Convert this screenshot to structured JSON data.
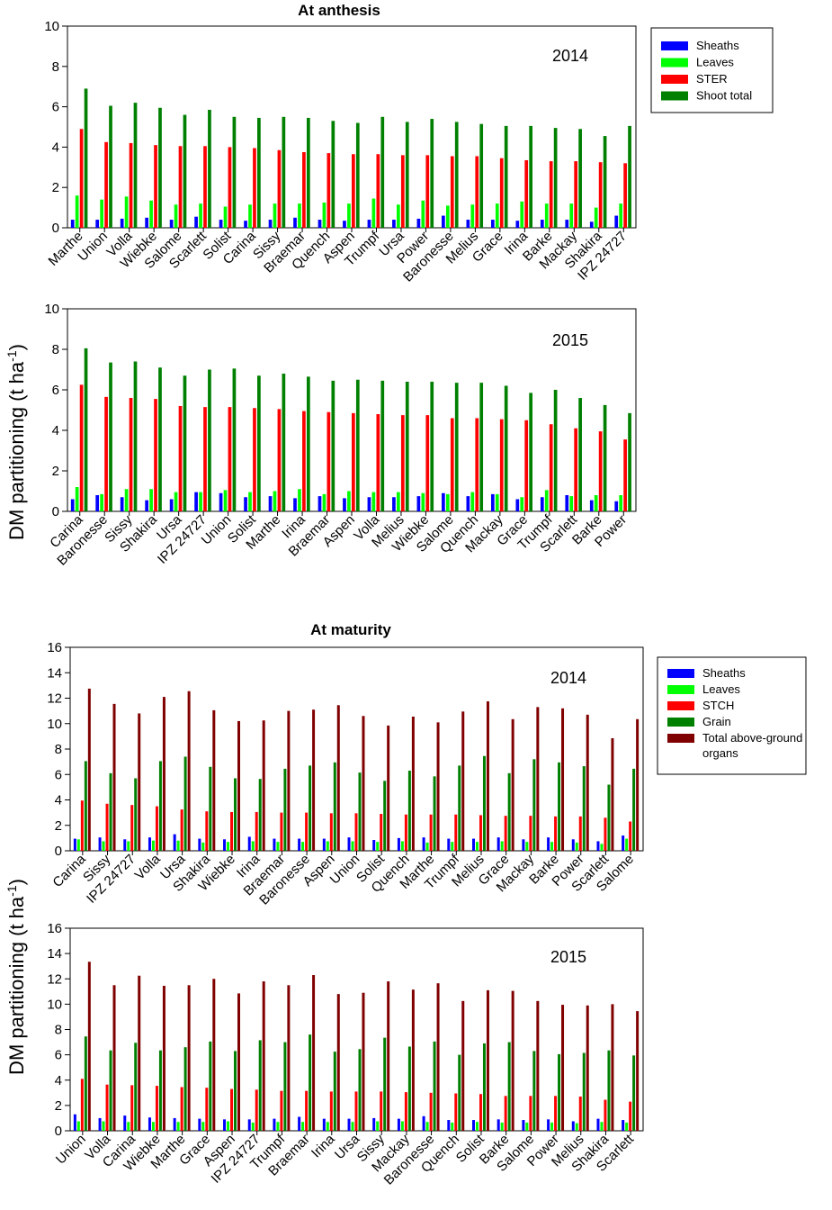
{
  "titles": {
    "anthesis": "At anthesis",
    "maturity": "At maturity"
  },
  "y_axis_label": "DM partitioning (t ha",
  "y_axis_label_sup": "-1",
  "y_axis_label_end": ")",
  "legend_anthesis": [
    {
      "name": "Sheaths",
      "color": "#0000ff"
    },
    {
      "name": "Leaves",
      "color": "#00ff00"
    },
    {
      "name": "STER",
      "color": "#ff0000"
    },
    {
      "name": "Shoot total",
      "color": "#008000"
    }
  ],
  "legend_maturity": [
    {
      "name": "Sheaths",
      "color": "#0000ff"
    },
    {
      "name": "Leaves",
      "color": "#00ff00"
    },
    {
      "name": "STCH",
      "color": "#ff0000"
    },
    {
      "name": "Grain",
      "color": "#008000"
    },
    {
      "name": "Total above-ground organs",
      "lines": [
        "Total above-ground",
        "organs"
      ],
      "color": "#800000"
    }
  ],
  "chart_data": [
    {
      "type": "bar",
      "title": "At anthesis",
      "label": "2014",
      "ylabel": "DM partitioning (t ha-1)",
      "ylim": [
        0,
        10
      ],
      "yticks": [
        0,
        2,
        4,
        6,
        8,
        10
      ],
      "categories": [
        "Marthe",
        "Union",
        "Volla",
        "Wiebke",
        "Salome",
        "Scarlett",
        "Solist",
        "Carina",
        "Sissy",
        "Braemar",
        "Quench",
        "Aspen",
        "Trumpf",
        "Ursa",
        "Power",
        "Baronesse",
        "Melius",
        "Grace",
        "Irina",
        "Barke",
        "Mackay",
        "Shakira",
        "IPZ 24727"
      ],
      "series": [
        {
          "name": "Sheaths",
          "values": [
            0.4,
            0.4,
            0.45,
            0.5,
            0.4,
            0.55,
            0.4,
            0.35,
            0.4,
            0.5,
            0.4,
            0.35,
            0.4,
            0.4,
            0.45,
            0.6,
            0.4,
            0.4,
            0.35,
            0.4,
            0.4,
            0.3,
            0.6
          ]
        },
        {
          "name": "Leaves",
          "values": [
            1.6,
            1.4,
            1.55,
            1.35,
            1.15,
            1.2,
            1.05,
            1.15,
            1.2,
            1.2,
            1.25,
            1.2,
            1.45,
            1.15,
            1.35,
            1.1,
            1.15,
            1.2,
            1.3,
            1.2,
            1.2,
            1.0,
            1.2
          ]
        },
        {
          "name": "STER",
          "values": [
            4.9,
            4.25,
            4.2,
            4.1,
            4.05,
            4.05,
            4.0,
            3.95,
            3.85,
            3.75,
            3.7,
            3.65,
            3.65,
            3.6,
            3.6,
            3.55,
            3.55,
            3.45,
            3.35,
            3.3,
            3.3,
            3.25,
            3.2
          ]
        },
        {
          "name": "Shoot total",
          "values": [
            6.9,
            6.05,
            6.2,
            5.95,
            5.6,
            5.85,
            5.5,
            5.45,
            5.5,
            5.45,
            5.3,
            5.2,
            5.5,
            5.25,
            5.4,
            5.25,
            5.15,
            5.05,
            5.05,
            4.95,
            4.9,
            4.55,
            5.05
          ]
        }
      ]
    },
    {
      "type": "bar",
      "title": "",
      "label": "2015",
      "ylabel": "DM partitioning (t ha-1)",
      "ylim": [
        0,
        10
      ],
      "yticks": [
        0,
        2,
        4,
        6,
        8,
        10
      ],
      "categories": [
        "Carina",
        "Baronesse",
        "Sissy",
        "Shakira",
        "Ursa",
        "IPZ 24727",
        "Union",
        "Solist",
        "Marthe",
        "Irina",
        "Braemar",
        "Aspen",
        "Volla",
        "Melius",
        "Wiebke",
        "Salome",
        "Quench",
        "Mackay",
        "Grace",
        "Trumpf",
        "Scarlett",
        "Barke",
        "Power"
      ],
      "series": [
        {
          "name": "Sheaths",
          "values": [
            0.6,
            0.8,
            0.7,
            0.55,
            0.6,
            0.95,
            0.9,
            0.7,
            0.75,
            0.65,
            0.75,
            0.65,
            0.7,
            0.7,
            0.75,
            0.9,
            0.75,
            0.85,
            0.6,
            0.7,
            0.8,
            0.55,
            0.5
          ]
        },
        {
          "name": "Leaves",
          "values": [
            1.2,
            0.85,
            1.1,
            1.1,
            0.95,
            0.95,
            1.05,
            0.95,
            1.0,
            1.1,
            0.85,
            1.0,
            0.95,
            0.95,
            0.9,
            0.85,
            0.95,
            0.85,
            0.7,
            1.05,
            0.75,
            0.8,
            0.8
          ]
        },
        {
          "name": "STER",
          "values": [
            6.25,
            5.65,
            5.6,
            5.55,
            5.2,
            5.15,
            5.15,
            5.1,
            5.05,
            4.95,
            4.9,
            4.85,
            4.8,
            4.75,
            4.75,
            4.6,
            4.6,
            4.55,
            4.5,
            4.3,
            4.1,
            3.95,
            3.55
          ]
        },
        {
          "name": "Shoot total",
          "values": [
            8.05,
            7.35,
            7.4,
            7.1,
            6.7,
            7.0,
            7.05,
            6.7,
            6.8,
            6.65,
            6.45,
            6.5,
            6.45,
            6.4,
            6.4,
            6.35,
            6.35,
            6.2,
            5.85,
            6.0,
            5.6,
            5.25,
            4.85
          ]
        }
      ]
    },
    {
      "type": "bar",
      "title": "At maturity",
      "label": "2014",
      "ylabel": "DM partitioning (t ha-1)",
      "ylim": [
        0,
        16
      ],
      "yticks": [
        0,
        2,
        4,
        6,
        8,
        10,
        12,
        14,
        16
      ],
      "categories": [
        "Carina",
        "Sissy",
        "IPZ 24727",
        "Volla",
        "Ursa",
        "Shakira",
        "Wiebke",
        "Irina",
        "Braemar",
        "Baronesse",
        "Aspen",
        "Union",
        "Solist",
        "Quench",
        "Marthe",
        "Trumpf",
        "Melius",
        "Grace",
        "Mackay",
        "Barke",
        "Power",
        "Scarlett",
        "Salome"
      ],
      "series": [
        {
          "name": "Sheaths",
          "values": [
            0.95,
            1.05,
            0.9,
            1.05,
            1.3,
            0.95,
            0.9,
            1.1,
            0.95,
            0.95,
            0.95,
            1.05,
            0.85,
            1.0,
            1.05,
            0.95,
            0.95,
            1.05,
            0.9,
            1.05,
            0.9,
            0.75,
            1.2
          ]
        },
        {
          "name": "Leaves",
          "values": [
            0.9,
            0.75,
            0.75,
            0.8,
            0.8,
            0.65,
            0.7,
            0.75,
            0.7,
            0.7,
            0.75,
            0.75,
            0.7,
            0.75,
            0.65,
            0.7,
            0.7,
            0.75,
            0.7,
            0.7,
            0.65,
            0.55,
            0.95
          ]
        },
        {
          "name": "STCH",
          "values": [
            3.95,
            3.7,
            3.6,
            3.5,
            3.25,
            3.1,
            3.05,
            3.05,
            3.0,
            3.0,
            2.95,
            2.95,
            2.9,
            2.85,
            2.85,
            2.85,
            2.8,
            2.75,
            2.75,
            2.7,
            2.7,
            2.6,
            2.3
          ]
        },
        {
          "name": "Grain",
          "values": [
            7.05,
            6.1,
            5.7,
            7.05,
            7.4,
            6.6,
            5.7,
            5.65,
            6.45,
            6.7,
            6.95,
            6.15,
            5.5,
            6.3,
            5.85,
            6.7,
            7.45,
            6.1,
            7.2,
            6.95,
            6.65,
            5.2,
            6.45
          ]
        },
        {
          "name": "Total above-ground organs",
          "values": [
            12.75,
            11.55,
            10.8,
            12.1,
            12.55,
            11.05,
            10.2,
            10.25,
            11.0,
            11.1,
            11.45,
            10.6,
            9.85,
            10.55,
            10.1,
            10.95,
            11.75,
            10.35,
            11.3,
            11.2,
            10.7,
            8.85,
            10.35
          ]
        }
      ]
    },
    {
      "type": "bar",
      "title": "",
      "label": "2015",
      "ylabel": "DM partitioning (t ha-1)",
      "ylim": [
        0,
        16
      ],
      "yticks": [
        0,
        2,
        4,
        6,
        8,
        10,
        12,
        14,
        16
      ],
      "categories": [
        "Union",
        "Volla",
        "Carina",
        "Wiebke",
        "Marthe",
        "Grace",
        "Aspen",
        "IPZ 24727",
        "Trumpf",
        "Braemar",
        "Irina",
        "Ursa",
        "Sissy",
        "Mackay",
        "Baronesse",
        "Quench",
        "Solist",
        "Barke",
        "Salome",
        "Power",
        "Melius",
        "Shakira",
        "Scarlett"
      ],
      "series": [
        {
          "name": "Sheaths",
          "values": [
            1.3,
            1.0,
            1.2,
            1.05,
            1.0,
            0.95,
            0.9,
            0.9,
            0.95,
            1.1,
            0.95,
            0.95,
            1.0,
            0.95,
            1.15,
            0.85,
            0.85,
            0.9,
            0.85,
            0.9,
            0.75,
            0.95,
            0.85
          ]
        },
        {
          "name": "Leaves",
          "values": [
            0.75,
            0.75,
            0.7,
            0.7,
            0.7,
            0.7,
            0.75,
            0.65,
            0.7,
            0.7,
            0.7,
            0.7,
            0.75,
            0.75,
            0.7,
            0.65,
            0.7,
            0.65,
            0.65,
            0.65,
            0.6,
            0.7,
            0.65
          ]
        },
        {
          "name": "STCH",
          "values": [
            4.1,
            3.65,
            3.6,
            3.55,
            3.45,
            3.4,
            3.3,
            3.25,
            3.15,
            3.15,
            3.1,
            3.1,
            3.1,
            3.05,
            3.0,
            2.95,
            2.9,
            2.75,
            2.75,
            2.75,
            2.7,
            2.45,
            2.3
          ]
        },
        {
          "name": "Grain",
          "values": [
            7.45,
            6.35,
            6.95,
            6.35,
            6.6,
            7.05,
            6.3,
            7.15,
            7.0,
            7.6,
            6.25,
            6.45,
            7.35,
            6.65,
            7.05,
            6.0,
            6.9,
            7.0,
            6.3,
            6.05,
            6.15,
            6.35,
            5.95
          ]
        },
        {
          "name": "Total above-ground organs",
          "values": [
            13.35,
            11.5,
            12.25,
            11.45,
            11.5,
            12.0,
            10.85,
            11.8,
            11.5,
            12.3,
            10.8,
            10.9,
            11.8,
            11.15,
            11.65,
            10.25,
            11.1,
            11.05,
            10.25,
            9.95,
            9.9,
            10.0,
            9.45
          ]
        }
      ]
    }
  ]
}
